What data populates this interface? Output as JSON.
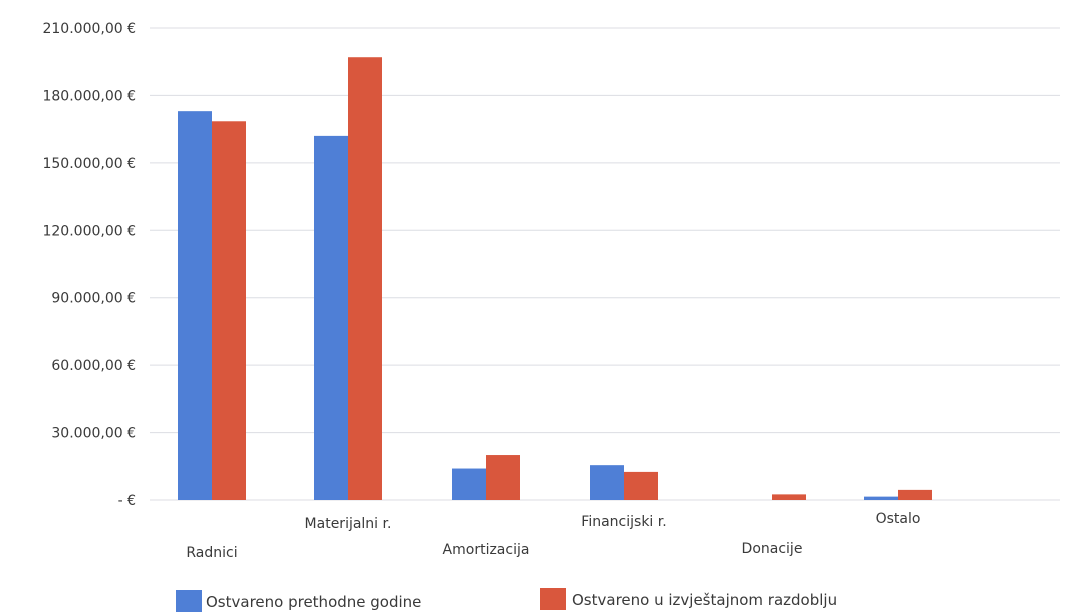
{
  "chart_data": {
    "type": "bar",
    "categories": [
      "Radnici",
      "Materijalni r.",
      "Amortizacija",
      "Financijski r.",
      "Donacije",
      "Ostalo"
    ],
    "series": [
      {
        "name": "Ostvareno prethodne godine",
        "color": "#4f7fd6",
        "values": [
          173000,
          162000,
          14000,
          15500,
          0,
          1500
        ]
      },
      {
        "name": "Ostvareno u izvještajnom razdoblju",
        "color": "#d9573d",
        "values": [
          168500,
          197000,
          20000,
          12500,
          2500,
          4500
        ]
      }
    ],
    "y_ticks": [
      0,
      30000,
      60000,
      90000,
      120000,
      150000,
      180000,
      210000
    ],
    "y_tick_labels": [
      "-   €",
      "30.000,00 €",
      "60.000,00 €",
      "90.000,00 €",
      "120.000,00 €",
      "150.000,00 €",
      "180.000,00 €",
      "210.000,00 €"
    ],
    "ylim": [
      0,
      210000
    ],
    "grid": true,
    "legend_position": "bottom"
  }
}
